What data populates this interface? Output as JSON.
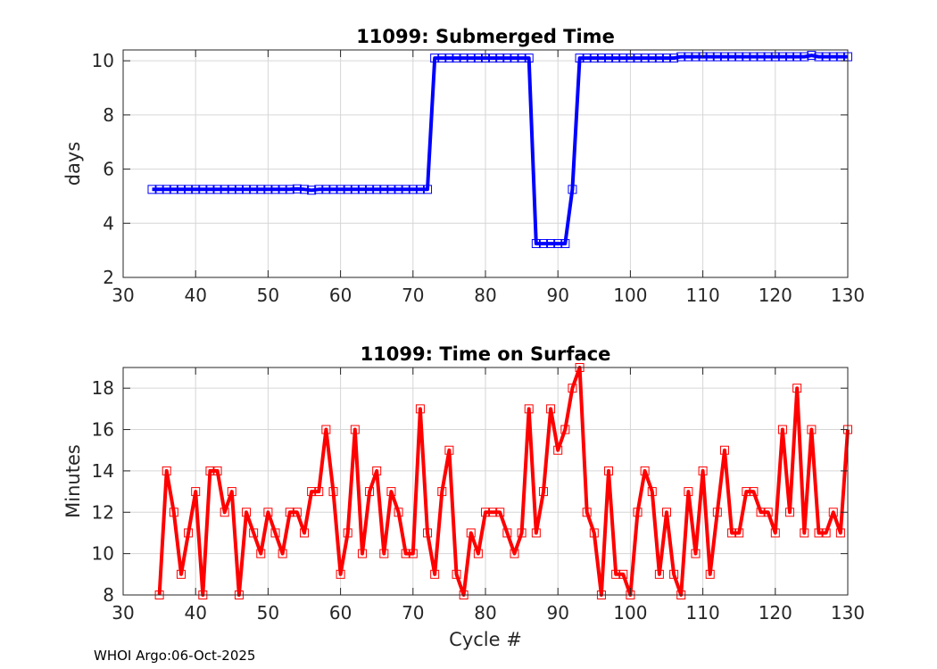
{
  "footer": "WHOI Argo:06-Oct-2025",
  "chart_data": [
    {
      "type": "line",
      "title": "11099: Submerged Time",
      "xlabel": "",
      "ylabel": "days",
      "xlim": [
        30,
        130
      ],
      "ylim": [
        2,
        10.4
      ],
      "xticks": [
        30,
        40,
        50,
        60,
        70,
        80,
        90,
        100,
        110,
        120,
        130
      ],
      "yticks": [
        2,
        4,
        6,
        8,
        10
      ],
      "grid": true,
      "color": "#0000ff",
      "marker": "square",
      "series": [
        {
          "name": "Submerged Time",
          "x": [
            34,
            35,
            36,
            37,
            38,
            39,
            40,
            41,
            42,
            43,
            44,
            45,
            46,
            47,
            48,
            49,
            50,
            51,
            52,
            53,
            54,
            55,
            56,
            57,
            58,
            59,
            60,
            61,
            62,
            63,
            64,
            65,
            66,
            67,
            68,
            69,
            70,
            71,
            72,
            73,
            74,
            75,
            76,
            77,
            78,
            79,
            80,
            81,
            82,
            83,
            84,
            85,
            86,
            87,
            88,
            89,
            90,
            91,
            92,
            93,
            94,
            95,
            96,
            97,
            98,
            99,
            100,
            101,
            102,
            103,
            104,
            105,
            106,
            107,
            108,
            109,
            110,
            111,
            112,
            113,
            114,
            115,
            116,
            117,
            118,
            119,
            120,
            121,
            122,
            123,
            124,
            125,
            126,
            127,
            128,
            129,
            130
          ],
          "values": [
            5.25,
            5.25,
            5.25,
            5.25,
            5.25,
            5.25,
            5.25,
            5.25,
            5.25,
            5.25,
            5.25,
            5.25,
            5.25,
            5.25,
            5.25,
            5.25,
            5.25,
            5.25,
            5.25,
            5.25,
            5.27,
            5.25,
            5.22,
            5.25,
            5.25,
            5.25,
            5.25,
            5.25,
            5.25,
            5.25,
            5.25,
            5.25,
            5.25,
            5.25,
            5.25,
            5.25,
            5.25,
            5.25,
            5.25,
            10.1,
            10.1,
            10.1,
            10.1,
            10.1,
            10.1,
            10.1,
            10.1,
            10.1,
            10.1,
            10.1,
            10.1,
            10.1,
            10.1,
            3.25,
            3.25,
            3.25,
            3.25,
            3.25,
            5.25,
            10.1,
            10.1,
            10.1,
            10.1,
            10.1,
            10.1,
            10.1,
            10.1,
            10.1,
            10.1,
            10.1,
            10.1,
            10.1,
            10.1,
            10.15,
            10.15,
            10.15,
            10.15,
            10.15,
            10.15,
            10.15,
            10.15,
            10.15,
            10.15,
            10.15,
            10.15,
            10.15,
            10.15,
            10.15,
            10.15,
            10.15,
            10.15,
            10.2,
            10.15,
            10.15,
            10.15,
            10.15,
            10.15
          ]
        }
      ]
    },
    {
      "type": "line",
      "title": "11099: Time on Surface",
      "xlabel": "Cycle #",
      "ylabel": "Minutes",
      "xlim": [
        30,
        130
      ],
      "ylim": [
        8,
        19
      ],
      "xticks": [
        30,
        40,
        50,
        60,
        70,
        80,
        90,
        100,
        110,
        120,
        130
      ],
      "yticks": [
        8,
        10,
        12,
        14,
        16,
        18
      ],
      "grid": true,
      "color": "#ff0000",
      "marker": "square",
      "series": [
        {
          "name": "Time on Surface",
          "x": [
            35,
            36,
            37,
            38,
            39,
            40,
            41,
            42,
            43,
            44,
            45,
            46,
            47,
            48,
            49,
            50,
            51,
            52,
            53,
            54,
            55,
            56,
            57,
            58,
            59,
            60,
            61,
            62,
            63,
            64,
            65,
            66,
            67,
            68,
            69,
            70,
            71,
            72,
            73,
            74,
            75,
            76,
            77,
            78,
            79,
            80,
            81,
            82,
            83,
            84,
            85,
            86,
            87,
            88,
            89,
            90,
            91,
            92,
            93,
            94,
            95,
            96,
            97,
            98,
            99,
            100,
            101,
            102,
            103,
            104,
            105,
            106,
            107,
            108,
            109,
            110,
            111,
            112,
            113,
            114,
            115,
            116,
            117,
            118,
            119,
            120,
            121,
            122,
            123,
            124,
            125,
            126,
            127,
            128,
            129,
            130
          ],
          "values": [
            8,
            14,
            12,
            9,
            11,
            13,
            8,
            14,
            14,
            12,
            13,
            8,
            12,
            11,
            10,
            12,
            11,
            10,
            12,
            12,
            11,
            13,
            13,
            16,
            13,
            9,
            11,
            16,
            10,
            13,
            14,
            10,
            13,
            12,
            10,
            10,
            17,
            11,
            9,
            13,
            15,
            9,
            8,
            11,
            10,
            12,
            12,
            12,
            11,
            10,
            11,
            17,
            11,
            13,
            17,
            15,
            16,
            18,
            19,
            12,
            11,
            8,
            14,
            9,
            9,
            8,
            12,
            14,
            13,
            9,
            12,
            9,
            8,
            13,
            10,
            14,
            9,
            12,
            15,
            11,
            11,
            13,
            13,
            12,
            12,
            11,
            16,
            12,
            18,
            11,
            16,
            11,
            11,
            12,
            11,
            16
          ]
        }
      ]
    }
  ]
}
